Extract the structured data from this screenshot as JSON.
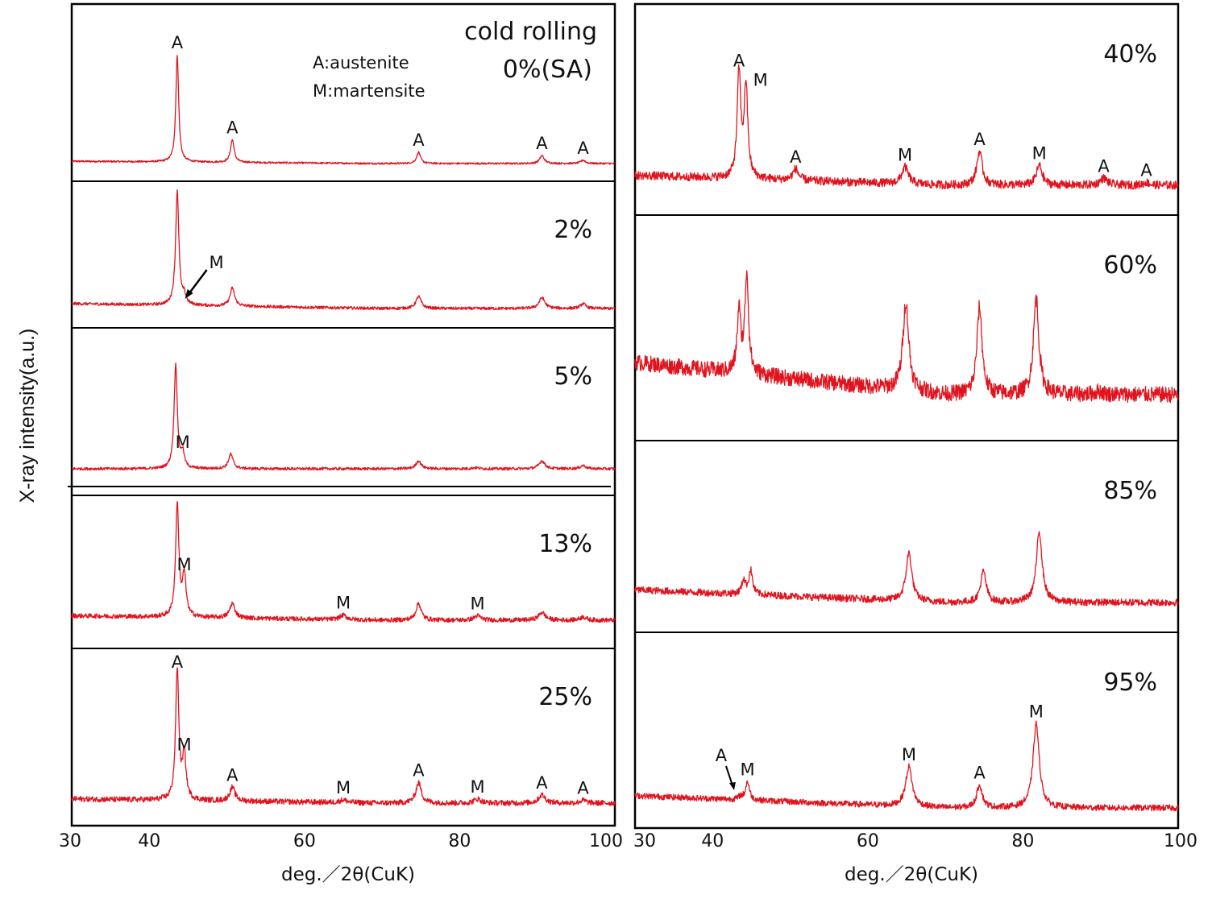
{
  "chart_data": {
    "type": "line",
    "title": "",
    "ylabel": "X-ray intensity(a.u.)",
    "xlabel": "deg.／2θ(CuK)",
    "xlim": [
      30,
      100
    ],
    "xticks": [
      30,
      40,
      60,
      80,
      100
    ],
    "series_color": "#e0141e",
    "annotation_header": "cold rolling",
    "legend": [
      "A:austenite",
      "M:martensite"
    ],
    "panels": [
      {
        "column": "left",
        "label": "0%(SA)",
        "peaks": [
          {
            "x": 43.6,
            "height": 0.95,
            "width": 0.22,
            "phase": "A",
            "label": "A"
          },
          {
            "x": 50.7,
            "height": 0.2,
            "width": 0.28,
            "phase": "A",
            "label": "A"
          },
          {
            "x": 74.7,
            "height": 0.1,
            "width": 0.3,
            "phase": "A",
            "label": "A"
          },
          {
            "x": 90.6,
            "height": 0.07,
            "width": 0.35,
            "phase": "A",
            "label": "A"
          },
          {
            "x": 95.9,
            "height": 0.03,
            "width": 0.35,
            "phase": "A",
            "label": "A"
          }
        ],
        "baseline_slope": 0.02,
        "noise": 0.008
      },
      {
        "column": "left",
        "label": "2%",
        "peaks": [
          {
            "x": 43.6,
            "height": 0.95,
            "width": 0.25,
            "phase": "A",
            "label": ""
          },
          {
            "x": 44.5,
            "height": 0.07,
            "width": 0.25,
            "phase": "M",
            "label": "M",
            "arrow": true
          },
          {
            "x": 50.7,
            "height": 0.15,
            "width": 0.35,
            "phase": "A",
            "label": ""
          },
          {
            "x": 74.7,
            "height": 0.1,
            "width": 0.4,
            "phase": "A",
            "label": ""
          },
          {
            "x": 90.6,
            "height": 0.09,
            "width": 0.45,
            "phase": "A",
            "label": ""
          },
          {
            "x": 95.9,
            "height": 0.04,
            "width": 0.4,
            "phase": "A",
            "label": ""
          }
        ],
        "baseline_slope": 0.04,
        "noise": 0.012
      },
      {
        "column": "left",
        "label": "5%",
        "peaks": [
          {
            "x": 43.4,
            "height": 0.92,
            "width": 0.25,
            "phase": "A",
            "label": ""
          },
          {
            "x": 44.3,
            "height": 0.13,
            "width": 0.25,
            "phase": "M",
            "label": "M"
          },
          {
            "x": 50.5,
            "height": 0.13,
            "width": 0.35,
            "phase": "A",
            "label": ""
          },
          {
            "x": 74.7,
            "height": 0.07,
            "width": 0.4,
            "phase": "A",
            "label": ""
          },
          {
            "x": 82.0,
            "height": 0.01,
            "width": 0.5,
            "phase": "M",
            "label": ""
          },
          {
            "x": 90.6,
            "height": 0.07,
            "width": 0.45,
            "phase": "A",
            "label": ""
          },
          {
            "x": 95.9,
            "height": 0.03,
            "width": 0.4,
            "phase": "A",
            "label": ""
          }
        ],
        "baseline_slope": 0.0,
        "noise": 0.012
      },
      {
        "column": "left",
        "label": "13%",
        "peaks": [
          {
            "x": 43.6,
            "height": 1.0,
            "width": 0.25,
            "phase": "A",
            "label": ""
          },
          {
            "x": 44.5,
            "height": 0.36,
            "width": 0.28,
            "phase": "M",
            "label": "M"
          },
          {
            "x": 50.7,
            "height": 0.13,
            "width": 0.4,
            "phase": "A",
            "label": ""
          },
          {
            "x": 65.0,
            "height": 0.04,
            "width": 0.5,
            "phase": "M",
            "label": "M"
          },
          {
            "x": 74.7,
            "height": 0.15,
            "width": 0.4,
            "phase": "A",
            "label": ""
          },
          {
            "x": 82.3,
            "height": 0.04,
            "width": 0.5,
            "phase": "M",
            "label": "M"
          },
          {
            "x": 90.6,
            "height": 0.07,
            "width": 0.5,
            "phase": "A",
            "label": ""
          },
          {
            "x": 95.9,
            "height": 0.03,
            "width": 0.45,
            "phase": "A",
            "label": ""
          }
        ],
        "baseline_slope": 0.04,
        "noise": 0.02
      },
      {
        "column": "left",
        "label": "25%",
        "peaks": [
          {
            "x": 43.6,
            "height": 0.95,
            "width": 0.25,
            "phase": "A",
            "label": "A"
          },
          {
            "x": 44.5,
            "height": 0.32,
            "width": 0.28,
            "phase": "M",
            "label": "M"
          },
          {
            "x": 50.7,
            "height": 0.1,
            "width": 0.4,
            "phase": "A",
            "label": "A"
          },
          {
            "x": 65.0,
            "height": 0.02,
            "width": 0.5,
            "phase": "M",
            "label": "M"
          },
          {
            "x": 74.7,
            "height": 0.15,
            "width": 0.42,
            "phase": "A",
            "label": "A"
          },
          {
            "x": 82.3,
            "height": 0.03,
            "width": 0.5,
            "phase": "M",
            "label": "M"
          },
          {
            "x": 90.6,
            "height": 0.06,
            "width": 0.5,
            "phase": "A",
            "label": "A"
          },
          {
            "x": 95.9,
            "height": 0.02,
            "width": 0.45,
            "phase": "A",
            "label": "A"
          }
        ],
        "baseline_slope": 0.03,
        "noise": 0.02
      },
      {
        "column": "right",
        "label": "40%",
        "peaks": [
          {
            "x": 43.4,
            "height": 0.75,
            "width": 0.28,
            "phase": "A",
            "label": "A"
          },
          {
            "x": 44.3,
            "height": 0.65,
            "width": 0.28,
            "phase": "M",
            "label": "M"
          },
          {
            "x": 50.7,
            "height": 0.08,
            "width": 0.45,
            "phase": "A",
            "label": "A"
          },
          {
            "x": 64.8,
            "height": 0.12,
            "width": 0.5,
            "phase": "M",
            "label": "M"
          },
          {
            "x": 74.4,
            "height": 0.24,
            "width": 0.42,
            "phase": "A",
            "label": "A"
          },
          {
            "x": 82.1,
            "height": 0.14,
            "width": 0.45,
            "phase": "M",
            "label": "M"
          },
          {
            "x": 90.4,
            "height": 0.05,
            "width": 0.55,
            "phase": "A",
            "label": "A"
          },
          {
            "x": 95.9,
            "height": 0.02,
            "width": 0.45,
            "phase": "A",
            "label": "A"
          }
        ],
        "baseline_slope": 0.07,
        "noise": 0.03
      },
      {
        "column": "right",
        "label": "60%",
        "peaks": [
          {
            "x": 43.4,
            "height": 0.38,
            "width": 0.28,
            "phase": "A",
            "label": ""
          },
          {
            "x": 44.4,
            "height": 0.62,
            "width": 0.28,
            "phase": "M",
            "label": ""
          },
          {
            "x": 64.9,
            "height": 0.55,
            "width": 0.45,
            "phase": "M",
            "label": ""
          },
          {
            "x": 74.4,
            "height": 0.54,
            "width": 0.4,
            "phase": "A",
            "label": ""
          },
          {
            "x": 81.7,
            "height": 0.6,
            "width": 0.42,
            "phase": "M",
            "label": ""
          },
          {
            "x": 89.8,
            "height": 0.02,
            "width": 0.6,
            "phase": "A",
            "label": ""
          }
        ],
        "baseline_slope": 0.2,
        "noise": 0.05
      },
      {
        "column": "right",
        "label": "85%",
        "peaks": [
          {
            "x": 44.0,
            "height": 0.1,
            "width": 0.28,
            "phase": "A",
            "label": ""
          },
          {
            "x": 44.9,
            "height": 0.17,
            "width": 0.28,
            "phase": "M",
            "label": ""
          },
          {
            "x": 65.3,
            "height": 0.34,
            "width": 0.45,
            "phase": "M",
            "label": ""
          },
          {
            "x": 74.9,
            "height": 0.22,
            "width": 0.42,
            "phase": "A",
            "label": ""
          },
          {
            "x": 82.1,
            "height": 0.5,
            "width": 0.45,
            "phase": "M",
            "label": ""
          }
        ],
        "baseline_slope": 0.09,
        "noise": 0.025
      },
      {
        "column": "right",
        "label": "95%",
        "peaks": [
          {
            "x": 43.6,
            "height": 0.02,
            "width": 0.3,
            "phase": "A",
            "label": "A",
            "arrow": true
          },
          {
            "x": 44.5,
            "height": 0.12,
            "width": 0.3,
            "phase": "M",
            "label": "M"
          },
          {
            "x": 65.3,
            "height": 0.26,
            "width": 0.5,
            "phase": "M",
            "label": "M"
          },
          {
            "x": 74.4,
            "height": 0.15,
            "width": 0.42,
            "phase": "A",
            "label": "A"
          },
          {
            "x": 81.7,
            "height": 0.55,
            "width": 0.48,
            "phase": "M",
            "label": "M"
          }
        ],
        "baseline_slope": 0.08,
        "noise": 0.02
      }
    ]
  }
}
